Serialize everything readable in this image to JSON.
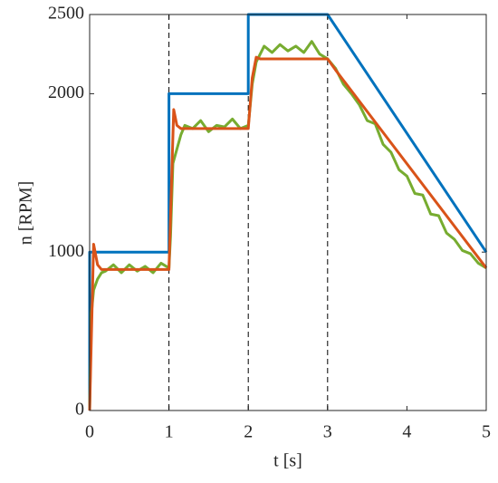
{
  "chart_data": {
    "type": "line",
    "x_label": "t [s]",
    "y_label": "n [RPM]",
    "xlim": [
      0,
      5
    ],
    "ylim": [
      0,
      2500
    ],
    "xticks": [
      0,
      1,
      2,
      3,
      4,
      5
    ],
    "yticks": [
      0,
      1000,
      2000,
      2500
    ],
    "grid": false,
    "vlines": [
      1,
      2,
      3
    ],
    "series": [
      {
        "color": "#0072bd",
        "x": [
          0,
          0,
          1,
          1,
          2,
          2,
          3,
          5
        ],
        "values": [
          0,
          1000,
          1000,
          2000,
          2000,
          2500,
          2500,
          1000
        ]
      },
      {
        "color": "#77ac30",
        "x": [
          0,
          0.02,
          0.05,
          0.1,
          0.15,
          0.2,
          0.3,
          0.4,
          0.5,
          0.6,
          0.7,
          0.8,
          0.9,
          1.0,
          1.02,
          1.05,
          1.1,
          1.15,
          1.2,
          1.3,
          1.4,
          1.5,
          1.6,
          1.7,
          1.8,
          1.9,
          2.0,
          2.02,
          2.05,
          2.1,
          2.15,
          2.2,
          2.3,
          2.4,
          2.5,
          2.6,
          2.7,
          2.8,
          2.9,
          3.0,
          3.1,
          3.2,
          3.3,
          3.4,
          3.5,
          3.6,
          3.7,
          3.8,
          3.9,
          4.0,
          4.1,
          4.2,
          4.3,
          4.4,
          4.5,
          4.6,
          4.7,
          4.8,
          4.9,
          5.0
        ],
        "values": [
          0,
          600,
          760,
          830,
          870,
          880,
          920,
          870,
          920,
          880,
          910,
          870,
          930,
          900,
          1100,
          1560,
          1650,
          1740,
          1800,
          1780,
          1830,
          1760,
          1800,
          1790,
          1840,
          1780,
          1800,
          1900,
          2060,
          2200,
          2250,
          2300,
          2260,
          2310,
          2270,
          2300,
          2260,
          2330,
          2250,
          2220,
          2160,
          2060,
          2000,
          1930,
          1830,
          1810,
          1680,
          1630,
          1520,
          1480,
          1370,
          1360,
          1240,
          1230,
          1120,
          1080,
          1010,
          990,
          930,
          900
        ]
      },
      {
        "color": "#d95319",
        "x": [
          0,
          0.05,
          0.1,
          0.15,
          0.2,
          1,
          1.03,
          1.06,
          1.1,
          1.15,
          2,
          2.05,
          2.1,
          2.15,
          3,
          3.1,
          5
        ],
        "values": [
          0,
          1050,
          920,
          890,
          890,
          890,
          1400,
          1900,
          1800,
          1780,
          1780,
          2100,
          2230,
          2220,
          2220,
          2150,
          900
        ]
      }
    ]
  }
}
